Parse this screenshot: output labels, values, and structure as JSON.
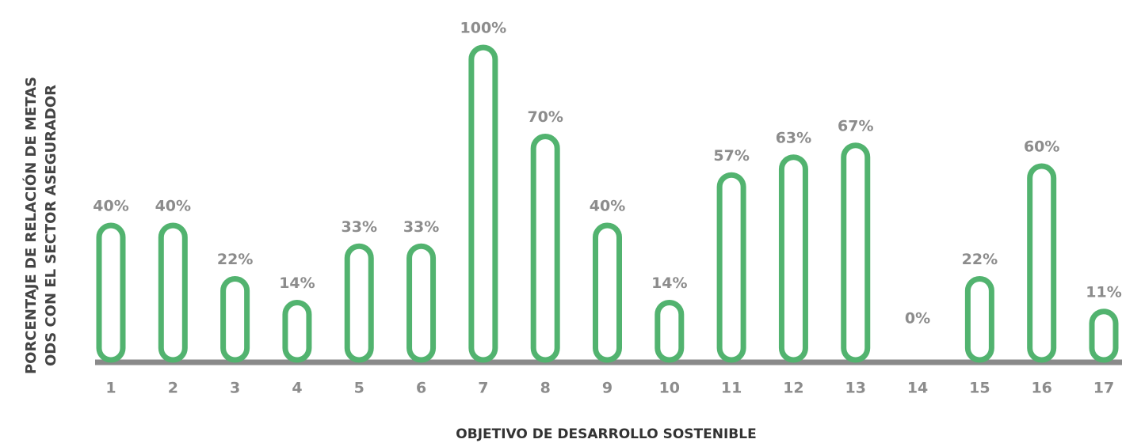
{
  "chart_data": {
    "type": "bar",
    "ylabel": [
      "PORCENTAJE DE RELACIÓN DE METAS",
      "ODS CON EL SECTOR ASEGURADOR"
    ],
    "xlabel": "OBJETIVO DE DESARROLLO SOSTENIBLE",
    "categories": [
      "1",
      "2",
      "3",
      "4",
      "5",
      "6",
      "7",
      "8",
      "9",
      "10",
      "11",
      "12",
      "13",
      "14",
      "15",
      "16",
      "17"
    ],
    "values": [
      40,
      40,
      22,
      14,
      33,
      33,
      100,
      70,
      40,
      14,
      57,
      63,
      67,
      0,
      22,
      60,
      11
    ],
    "value_labels": [
      "40%",
      "40%",
      "22%",
      "14%",
      "33%",
      "33%",
      "100%",
      "70%",
      "40%",
      "14%",
      "57%",
      "63%",
      "67%",
      "0%",
      "22%",
      "60%",
      "11%"
    ],
    "color": "#52b36f"
  }
}
